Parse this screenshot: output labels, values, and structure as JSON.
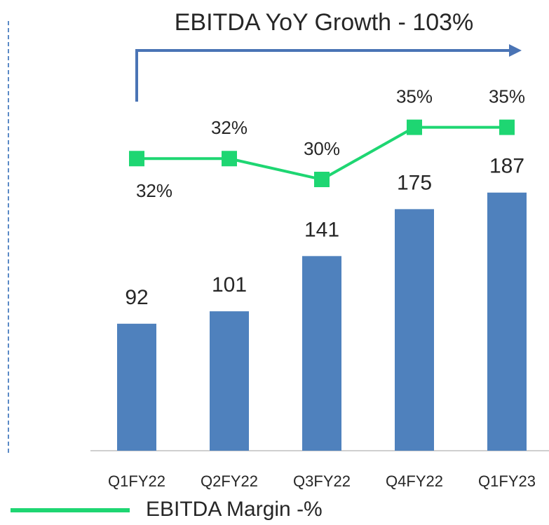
{
  "chart_data": {
    "type": "bar",
    "title": "EBITDA YoY Growth - 103%",
    "categories": [
      "Q1FY22",
      "Q2FY22",
      "Q3FY22",
      "Q4FY22",
      "Q1FY23"
    ],
    "series": [
      {
        "type": "bar",
        "color": "#4f81bd",
        "values": [
          92,
          101,
          141,
          175,
          187
        ]
      },
      {
        "type": "line",
        "name": "EBITDA Margin -%",
        "color": "#1ed672",
        "axis": "y2",
        "values": [
          32,
          32,
          30,
          35,
          35
        ],
        "value_labels": [
          "32%",
          "32%",
          "30%",
          "35%",
          "35%"
        ]
      }
    ],
    "ylim": [
      0,
      325
    ],
    "y2lim": [
      4,
      47
    ],
    "legend": "bottom"
  }
}
